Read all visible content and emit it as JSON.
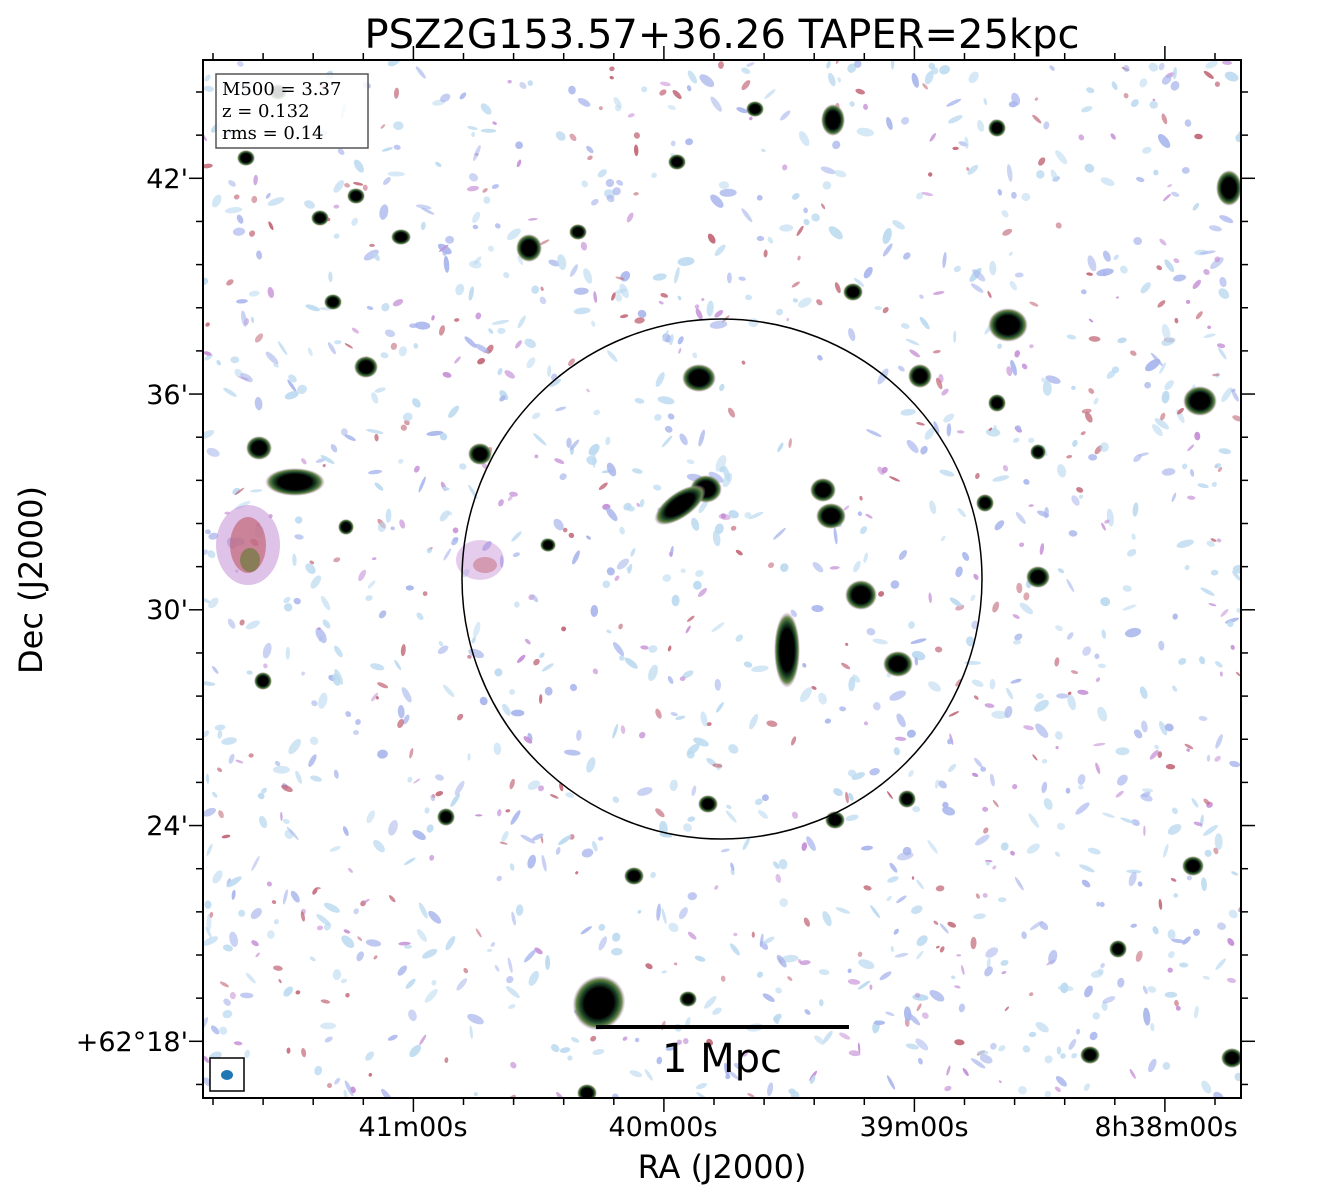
{
  "figure": {
    "title": "PSZ2G153.57+36.26 TAPER=25kpc",
    "xlabel": "RA (J2000)",
    "ylabel": "Dec (J2000)",
    "x_ticks": [
      "41m00s",
      "40m00s",
      "39m00s",
      "8h38m00s"
    ],
    "y_ticks": [
      "42'",
      "36'",
      "30'",
      "24'",
      "+62°18'"
    ],
    "info_box": {
      "line1": "M500 = 3.37",
      "line2": "z = 0.132",
      "line3": "rms = 0.14"
    },
    "scale_bar_label": "1 Mpc",
    "colors": {
      "background": "#ffffff",
      "noise_light": "#bcdaf0",
      "noise_blue": "#a9b6ec",
      "noise_purple": "#c58fd6",
      "noise_red": "#c26878",
      "source_core": "#000000",
      "source_halo": "#3f7a3a",
      "beam": "#1f77b4"
    }
  }
}
